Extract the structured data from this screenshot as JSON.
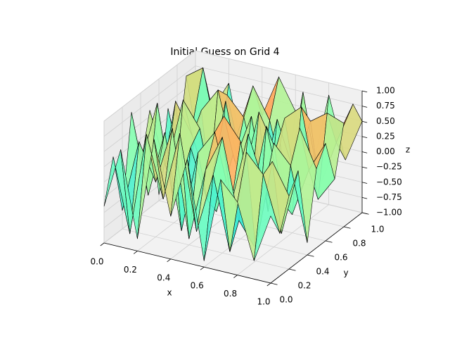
{
  "chart_data": {
    "type": "surface",
    "title": "Initial Guess on Grid 4",
    "xlabel": "x",
    "ylabel": "y",
    "zlabel": "z",
    "colormap": "rainbow",
    "x": [
      0,
      0.1,
      0.2,
      0.3,
      0.4,
      0.5,
      0.6,
      0.7,
      0.8,
      0.9,
      1
    ],
    "y": [
      0,
      0.1,
      0.2,
      0.3,
      0.4,
      0.5,
      0.6,
      0.7,
      0.8,
      0.9,
      1
    ],
    "z": [
      [
        -0.4,
        0.6,
        -0.8,
        0.9,
        -0.3,
        0.7,
        -0.9,
        0.5,
        0.2,
        -0.7,
        0.1
      ],
      [
        0.3,
        -0.9,
        0.8,
        -0.2,
        0.95,
        -0.6,
        0.4,
        -0.8,
        0.9,
        0.6,
        -0.3
      ],
      [
        -0.7,
        0.5,
        -0.1,
        0.85,
        -0.9,
        0.3,
        0.9,
        -0.4,
        -0.8,
        0.7,
        0.2
      ],
      [
        0.8,
        -0.5,
        0.6,
        -0.95,
        0.4,
        0.8,
        -0.3,
        0.9,
        0.1,
        -0.6,
        0.5
      ],
      [
        -0.2,
        0.9,
        -0.7,
        0.3,
        -0.5,
        0.95,
        0.6,
        -0.9,
        0.7,
        0.4,
        -0.8
      ],
      [
        0.6,
        -0.3,
        0.9,
        0.5,
        -0.8,
        0.2,
        -0.6,
        0.8,
        -0.4,
        0.9,
        0.3
      ],
      [
        -0.9,
        0.7,
        0.2,
        -0.6,
        0.9,
        -0.4,
        0.85,
        0.3,
        -0.7,
        0.1,
        0.6
      ],
      [
        0.4,
        -0.8,
        0.5,
        0.9,
        -0.2,
        0.6,
        -0.9,
        0.7,
        0.95,
        -0.5,
        -0.1
      ],
      [
        -0.5,
        0.2,
        -0.9,
        0.7,
        0.4,
        -0.7,
        0.5,
        -0.3,
        0.6,
        0.8,
        0.7
      ],
      [
        0.7,
        0.9,
        -0.4,
        -0.1,
        0.8,
        0.3,
        -0.8,
        0.9,
        -0.6,
        0.2,
        0.9
      ],
      [
        -0.3,
        0.1,
        0.6,
        -0.7,
        0.2,
        0.9,
        0.4,
        -0.5,
        0.8,
        -0.2,
        0.5
      ]
    ],
    "xlim": [
      0,
      1
    ],
    "ylim": [
      0,
      1
    ],
    "zlim": [
      -1,
      1
    ],
    "xticks": [
      {
        "value": 0,
        "label": "0.0"
      },
      {
        "value": 0.2,
        "label": "0.2"
      },
      {
        "value": 0.4,
        "label": "0.4"
      },
      {
        "value": 0.6,
        "label": "0.6"
      },
      {
        "value": 0.8,
        "label": "0.8"
      },
      {
        "value": 1,
        "label": "1.0"
      }
    ],
    "yticks": [
      {
        "value": 0,
        "label": "0.0"
      },
      {
        "value": 0.2,
        "label": "0.2"
      },
      {
        "value": 0.4,
        "label": "0.4"
      },
      {
        "value": 0.6,
        "label": "0.6"
      },
      {
        "value": 0.8,
        "label": "0.8"
      },
      {
        "value": 1,
        "label": "1.0"
      }
    ],
    "zticks": [
      {
        "value": -1,
        "label": "−1.00"
      },
      {
        "value": -0.75,
        "label": "−0.75"
      },
      {
        "value": -0.5,
        "label": "−0.50"
      },
      {
        "value": -0.25,
        "label": "−0.25"
      },
      {
        "value": 0,
        "label": "0.00"
      },
      {
        "value": 0.25,
        "label": "0.25"
      },
      {
        "value": 0.5,
        "label": "0.50"
      },
      {
        "value": 0.75,
        "label": "0.75"
      },
      {
        "value": 1,
        "label": "1.00"
      }
    ],
    "grid": true
  }
}
